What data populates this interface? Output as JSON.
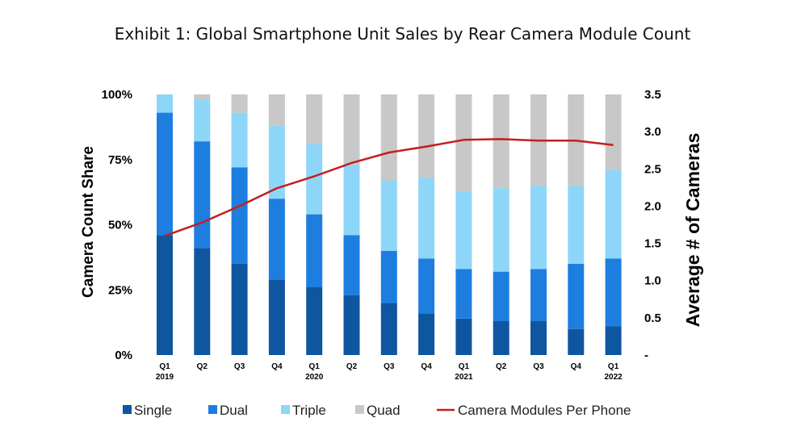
{
  "title": "Exhibit 1:  Global Smartphone Unit Sales by Rear Camera Module Count",
  "chart_data": {
    "type": "bar",
    "stacked": true,
    "secondary_type": "line",
    "categories": [
      "Q1 2019",
      "Q2",
      "Q3",
      "Q4",
      "Q1 2020",
      "Q2",
      "Q3",
      "Q4",
      "Q1 2021",
      "Q2",
      "Q3",
      "Q4",
      "Q1 2022"
    ],
    "category_labels": [
      [
        "Q1",
        "2019"
      ],
      [
        "Q2",
        ""
      ],
      [
        "Q3",
        ""
      ],
      [
        "Q4",
        ""
      ],
      [
        "Q1",
        "2020"
      ],
      [
        "Q2",
        ""
      ],
      [
        "Q3",
        ""
      ],
      [
        "Q4",
        ""
      ],
      [
        "Q1",
        "2021"
      ],
      [
        "Q2",
        ""
      ],
      [
        "Q3",
        ""
      ],
      [
        "Q4",
        ""
      ],
      [
        "Q1",
        "2022"
      ]
    ],
    "series": [
      {
        "name": "Single",
        "color": "#0f56a0",
        "values": [
          46,
          41,
          35,
          29,
          26,
          23,
          20,
          16,
          14,
          13,
          13,
          10,
          11
        ]
      },
      {
        "name": "Dual",
        "color": "#1e7ee0",
        "values": [
          47,
          41,
          37,
          31,
          28,
          23,
          20,
          21,
          19,
          19,
          20,
          25,
          26
        ]
      },
      {
        "name": "Triple",
        "color": "#8dd6f8",
        "values": [
          7,
          16,
          21,
          28,
          27,
          27,
          27,
          31,
          30,
          32,
          32,
          30,
          34
        ]
      },
      {
        "name": "Quad",
        "color": "#c8c8c8",
        "values": [
          0,
          2,
          7,
          12,
          19,
          27,
          33,
          32,
          37,
          36,
          35,
          35,
          29
        ]
      }
    ],
    "line_series": {
      "name": "Camera Modules Per Phone",
      "color": "#c41e1e",
      "values": [
        1.6,
        1.78,
        2.0,
        2.24,
        2.4,
        2.58,
        2.72,
        2.8,
        2.89,
        2.9,
        2.88,
        2.88,
        2.82
      ]
    },
    "y_left": {
      "label": "Camera Count Share",
      "range": [
        0,
        100
      ],
      "ticks": [
        "0%",
        "25%",
        "50%",
        "75%",
        "100%"
      ],
      "tick_values": [
        0,
        25,
        50,
        75,
        100
      ]
    },
    "y_right": {
      "label": "Average # of Cameras",
      "range": [
        0,
        3.5
      ],
      "ticks": [
        "-",
        "0.5",
        "1.0",
        "1.5",
        "2.0",
        "2.5",
        "3.0",
        "3.5"
      ],
      "tick_values": [
        0,
        0.5,
        1.0,
        1.5,
        2.0,
        2.5,
        3.0,
        3.5
      ]
    },
    "legend": {
      "placement": "bottom",
      "entries": [
        "Single",
        "Dual",
        "Triple",
        "Quad",
        "Camera Modules Per Phone"
      ]
    }
  }
}
